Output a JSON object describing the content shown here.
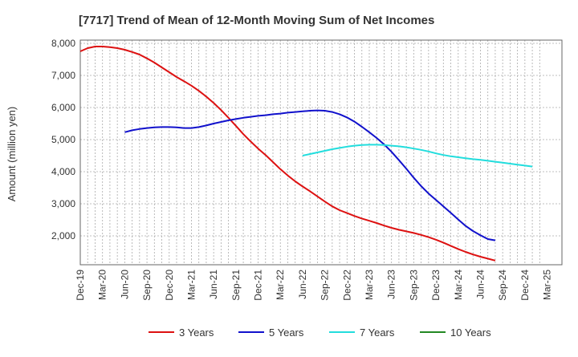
{
  "chart_data": {
    "type": "line",
    "title": "[7717]  Trend of Mean of 12-Month Moving Sum of Net Incomes",
    "xlabel": "",
    "ylabel": "Amount (million yen)",
    "ylim": [
      1100,
      8100
    ],
    "yticks": [
      2000,
      3000,
      4000,
      5000,
      6000,
      7000,
      8000
    ],
    "ytick_labels": [
      "2,000",
      "3,000",
      "4,000",
      "5,000",
      "6,000",
      "7,000",
      "8,000"
    ],
    "xticks": [
      "Dec-19",
      "Mar-20",
      "Jun-20",
      "Sep-20",
      "Dec-20",
      "Mar-21",
      "Jun-21",
      "Sep-21",
      "Dec-21",
      "Mar-22",
      "Jun-22",
      "Sep-22",
      "Dec-22",
      "Mar-23",
      "Jun-23",
      "Sep-23",
      "Dec-23",
      "Mar-24",
      "Jun-24",
      "Sep-24",
      "Dec-24",
      "Mar-25"
    ],
    "grid": true,
    "legend_position": "bottom",
    "series": [
      {
        "name": "3 Years",
        "color": "#dd1111",
        "points": [
          [
            0,
            7750
          ],
          [
            1,
            7850
          ],
          [
            2,
            7900
          ],
          [
            3,
            7900
          ],
          [
            4,
            7880
          ],
          [
            5,
            7850
          ],
          [
            6,
            7800
          ],
          [
            7,
            7730
          ],
          [
            8,
            7650
          ],
          [
            9,
            7530
          ],
          [
            10,
            7400
          ],
          [
            11,
            7250
          ],
          [
            12,
            7100
          ],
          [
            13,
            6950
          ],
          [
            14,
            6820
          ],
          [
            15,
            6680
          ],
          [
            16,
            6520
          ],
          [
            17,
            6340
          ],
          [
            18,
            6140
          ],
          [
            19,
            5920
          ],
          [
            20,
            5680
          ],
          [
            21,
            5430
          ],
          [
            22,
            5170
          ],
          [
            23,
            4940
          ],
          [
            24,
            4720
          ],
          [
            25,
            4520
          ],
          [
            26,
            4300
          ],
          [
            27,
            4080
          ],
          [
            28,
            3880
          ],
          [
            29,
            3700
          ],
          [
            30,
            3540
          ],
          [
            31,
            3390
          ],
          [
            32,
            3230
          ],
          [
            33,
            3070
          ],
          [
            34,
            2920
          ],
          [
            35,
            2800
          ],
          [
            36,
            2710
          ],
          [
            37,
            2620
          ],
          [
            38,
            2540
          ],
          [
            39,
            2470
          ],
          [
            40,
            2400
          ],
          [
            41,
            2320
          ],
          [
            42,
            2250
          ],
          [
            43,
            2190
          ],
          [
            44,
            2140
          ],
          [
            45,
            2090
          ],
          [
            46,
            2030
          ],
          [
            47,
            1960
          ],
          [
            48,
            1880
          ],
          [
            49,
            1790
          ],
          [
            50,
            1690
          ],
          [
            51,
            1590
          ],
          [
            52,
            1500
          ],
          [
            53,
            1420
          ],
          [
            54,
            1350
          ],
          [
            55,
            1290
          ],
          [
            56,
            1230
          ]
        ]
      },
      {
        "name": "5 Years",
        "color": "#1111cc",
        "points": [
          [
            6,
            5230
          ],
          [
            7,
            5290
          ],
          [
            8,
            5330
          ],
          [
            9,
            5360
          ],
          [
            10,
            5380
          ],
          [
            11,
            5390
          ],
          [
            12,
            5390
          ],
          [
            13,
            5380
          ],
          [
            14,
            5360
          ],
          [
            15,
            5360
          ],
          [
            16,
            5390
          ],
          [
            17,
            5440
          ],
          [
            18,
            5500
          ],
          [
            19,
            5550
          ],
          [
            20,
            5600
          ],
          [
            21,
            5640
          ],
          [
            22,
            5680
          ],
          [
            23,
            5710
          ],
          [
            24,
            5740
          ],
          [
            25,
            5760
          ],
          [
            26,
            5790
          ],
          [
            27,
            5810
          ],
          [
            28,
            5840
          ],
          [
            29,
            5860
          ],
          [
            30,
            5880
          ],
          [
            31,
            5900
          ],
          [
            32,
            5910
          ],
          [
            33,
            5900
          ],
          [
            34,
            5860
          ],
          [
            35,
            5790
          ],
          [
            36,
            5690
          ],
          [
            37,
            5560
          ],
          [
            38,
            5400
          ],
          [
            39,
            5230
          ],
          [
            40,
            5050
          ],
          [
            41,
            4850
          ],
          [
            42,
            4620
          ],
          [
            43,
            4360
          ],
          [
            44,
            4090
          ],
          [
            45,
            3810
          ],
          [
            46,
            3550
          ],
          [
            47,
            3320
          ],
          [
            48,
            3120
          ],
          [
            49,
            2920
          ],
          [
            50,
            2720
          ],
          [
            51,
            2510
          ],
          [
            52,
            2310
          ],
          [
            53,
            2150
          ],
          [
            54,
            2020
          ],
          [
            55,
            1900
          ],
          [
            56,
            1860
          ]
        ]
      },
      {
        "name": "7 Years",
        "color": "#22dddd",
        "points": [
          [
            30,
            4500
          ],
          [
            31,
            4550
          ],
          [
            32,
            4600
          ],
          [
            33,
            4650
          ],
          [
            34,
            4700
          ],
          [
            35,
            4740
          ],
          [
            36,
            4780
          ],
          [
            37,
            4810
          ],
          [
            38,
            4830
          ],
          [
            39,
            4840
          ],
          [
            40,
            4840
          ],
          [
            41,
            4830
          ],
          [
            42,
            4810
          ],
          [
            43,
            4790
          ],
          [
            44,
            4760
          ],
          [
            45,
            4720
          ],
          [
            46,
            4680
          ],
          [
            47,
            4630
          ],
          [
            48,
            4570
          ],
          [
            49,
            4520
          ],
          [
            50,
            4480
          ],
          [
            51,
            4450
          ],
          [
            52,
            4420
          ],
          [
            53,
            4390
          ],
          [
            54,
            4370
          ],
          [
            55,
            4340
          ],
          [
            56,
            4310
          ],
          [
            57,
            4280
          ],
          [
            58,
            4250
          ],
          [
            59,
            4220
          ],
          [
            60,
            4190
          ],
          [
            61,
            4160
          ]
        ]
      },
      {
        "name": "10 Years",
        "color": "#228822",
        "points": []
      }
    ]
  }
}
